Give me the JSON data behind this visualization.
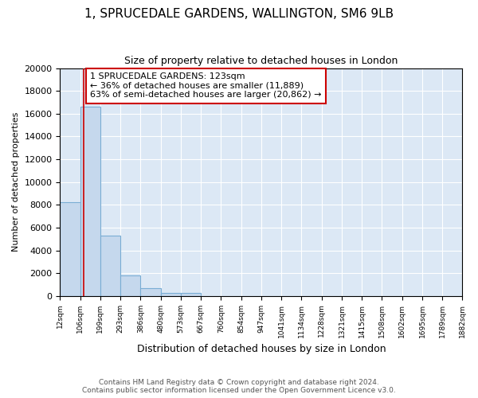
{
  "title": "1, SPRUCEDALE GARDENS, WALLINGTON, SM6 9LB",
  "subtitle": "Size of property relative to detached houses in London",
  "xlabel": "Distribution of detached houses by size in London",
  "ylabel": "Number of detached properties",
  "bin_edges": [
    12,
    106,
    199,
    293,
    386,
    480,
    573,
    667,
    760,
    854,
    947,
    1041,
    1134,
    1228,
    1321,
    1415,
    1508,
    1602,
    1695,
    1789,
    1882
  ],
  "bin_counts": [
    8200,
    16600,
    5300,
    1800,
    700,
    300,
    300,
    0,
    0,
    0,
    0,
    0,
    0,
    0,
    0,
    0,
    0,
    0,
    0,
    0
  ],
  "property_size": 123,
  "bar_color": "#c5d8ed",
  "bar_edge_color": "#7aadd4",
  "property_line_color": "#cc0000",
  "annotation_line1": "1 SPRUCEDALE GARDENS: 123sqm",
  "annotation_line2": "← 36% of detached houses are smaller (11,889)",
  "annotation_line3": "63% of semi-detached houses are larger (20,862) →",
  "annotation_box_color": "#ffffff",
  "annotation_box_edge_color": "#cc0000",
  "footer_line1": "Contains HM Land Registry data © Crown copyright and database right 2024.",
  "footer_line2": "Contains public sector information licensed under the Open Government Licence v3.0.",
  "ylim": [
    0,
    20000
  ],
  "yticks": [
    0,
    2000,
    4000,
    6000,
    8000,
    10000,
    12000,
    14000,
    16000,
    18000,
    20000
  ],
  "figure_bg": "#ffffff",
  "axes_bg": "#dce8f5",
  "title_fontsize": 11,
  "subtitle_fontsize": 9,
  "ylabel_fontsize": 8,
  "xlabel_fontsize": 9
}
